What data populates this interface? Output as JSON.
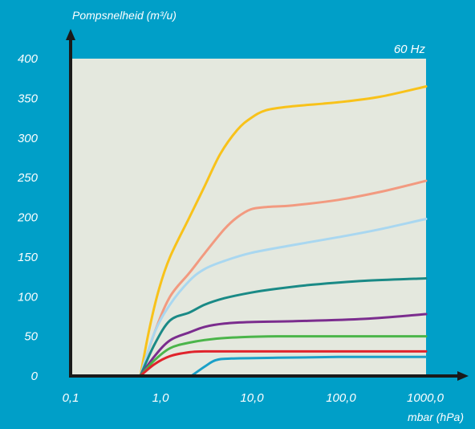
{
  "chart_data": {
    "type": "line",
    "title": "",
    "ylabel": "Pompsnelheid (m³/u)",
    "xlabel": "mbar (hPa)",
    "frequency_label": "60 Hz",
    "x_scale": "log",
    "xlim": [
      0.1,
      1000
    ],
    "ylim": [
      0,
      400
    ],
    "x_ticks": [
      0.1,
      1,
      10,
      100,
      1000
    ],
    "x_tick_labels": [
      "0,1",
      "1,0",
      "10,0",
      "100,0",
      "1000,0"
    ],
    "y_ticks": [
      0,
      50,
      100,
      150,
      200,
      250,
      300,
      350,
      400
    ],
    "y_tick_labels": [
      "0",
      "50",
      "100",
      "150",
      "200",
      "250",
      "300",
      "350",
      "400"
    ],
    "grid": false,
    "colors": {
      "background": "#009fc8",
      "plot_area": "#e4e8de",
      "axis": "#1a1a1a"
    },
    "series": [
      {
        "color": "#f8c21a",
        "x": [
          0.55,
          0.7,
          0.9,
          1.2,
          2,
          3,
          4.5,
          7,
          10,
          15,
          30,
          100,
          300,
          1000
        ],
        "y": [
          0,
          60,
          110,
          150,
          200,
          240,
          280,
          310,
          325,
          335,
          340,
          345,
          352,
          365
        ]
      },
      {
        "color": "#f29a80",
        "x": [
          0.55,
          0.8,
          1.2,
          2,
          3,
          5,
          7,
          10,
          15,
          30,
          100,
          300,
          1000
        ],
        "y": [
          0,
          55,
          100,
          130,
          155,
          185,
          200,
          210,
          213,
          215,
          222,
          232,
          246
        ]
      },
      {
        "color": "#a9d7f0",
        "x": [
          0.55,
          0.8,
          1.2,
          2,
          3,
          5,
          10,
          30,
          100,
          300,
          1000
        ],
        "y": [
          0,
          55,
          90,
          120,
          135,
          145,
          155,
          165,
          175,
          185,
          198
        ]
      },
      {
        "color": "#1a8a86",
        "x": [
          0.55,
          0.8,
          1.2,
          2,
          3,
          5,
          10,
          20,
          50,
          200,
          1000
        ],
        "y": [
          0,
          40,
          70,
          80,
          90,
          98,
          105,
          110,
          115,
          120,
          123
        ]
      },
      {
        "color": "#7b2d8e",
        "x": [
          0.55,
          0.8,
          1.2,
          2,
          3,
          5,
          10,
          30,
          200,
          1000
        ],
        "y": [
          0,
          25,
          45,
          55,
          62,
          66,
          68,
          69,
          72,
          78
        ]
      },
      {
        "color": "#4bb54a",
        "x": [
          0.55,
          0.8,
          1.2,
          2,
          4,
          8,
          20,
          100,
          1000
        ],
        "y": [
          0,
          20,
          35,
          42,
          47,
          49,
          50,
          50,
          50
        ]
      },
      {
        "color": "#e0242c",
        "x": [
          0.55,
          0.8,
          1.2,
          2,
          3,
          6,
          20,
          100,
          1000
        ],
        "y": [
          0,
          15,
          25,
          30,
          31,
          31,
          31,
          31,
          31
        ]
      },
      {
        "color": "#1aa0c8",
        "x": [
          2.1,
          3,
          4,
          6,
          20,
          100,
          1000
        ],
        "y": [
          0,
          12,
          20,
          22,
          23,
          24,
          24
        ]
      }
    ]
  }
}
